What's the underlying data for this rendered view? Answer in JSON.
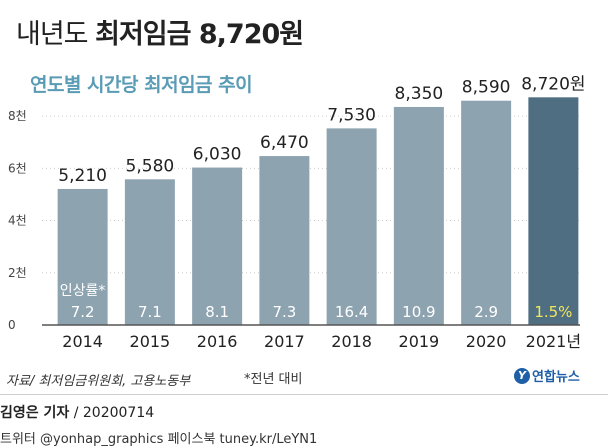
{
  "header": {
    "title_prefix": "내년도",
    "title_main": "최저임금 8,720원",
    "subtitle": "연도별 시간당 최저임금 추이"
  },
  "chart_data": {
    "type": "bar",
    "categories": [
      "2014",
      "2015",
      "2016",
      "2017",
      "2018",
      "2019",
      "2020",
      "2021년"
    ],
    "series": [
      {
        "values": [
          5210,
          5580,
          6030,
          6470,
          7530,
          8350,
          8590,
          8720
        ],
        "labels": [
          "5,210",
          "5,580",
          "6,030",
          "6,470",
          "7,530",
          "8,350",
          "8,590",
          "8,720원"
        ]
      }
    ],
    "increase_rate": {
      "label": "인상률*",
      "values": [
        "7.2",
        "7.1",
        "8.1",
        "7.3",
        "16.4",
        "10.9",
        "2.9",
        "1.5%"
      ]
    },
    "yticks": [
      {
        "value": 0,
        "label": "0"
      },
      {
        "value": 2000,
        "label": "2천"
      },
      {
        "value": 4000,
        "label": "4천"
      },
      {
        "value": 6000,
        "label": "6천"
      },
      {
        "value": 8000,
        "label": "8천"
      }
    ],
    "ylim": [
      0,
      9000
    ],
    "grid": true,
    "colors": {
      "bar": "#8da3b0",
      "bar_highlight": "#4f6e82",
      "rate_text": "#ffffff",
      "rate_highlight": "#f2e65c",
      "grid": "#cccccc"
    }
  },
  "footer": {
    "source": "자료/ 최저임금위원회, 고용노동부",
    "note": "*전년 대비",
    "logo_text": "연합뉴스",
    "reporter": "김영은 기자",
    "date": " / 20200714",
    "social": "트위터 @yonhap_graphics  페이스북 tuney.kr/LeYN1"
  }
}
